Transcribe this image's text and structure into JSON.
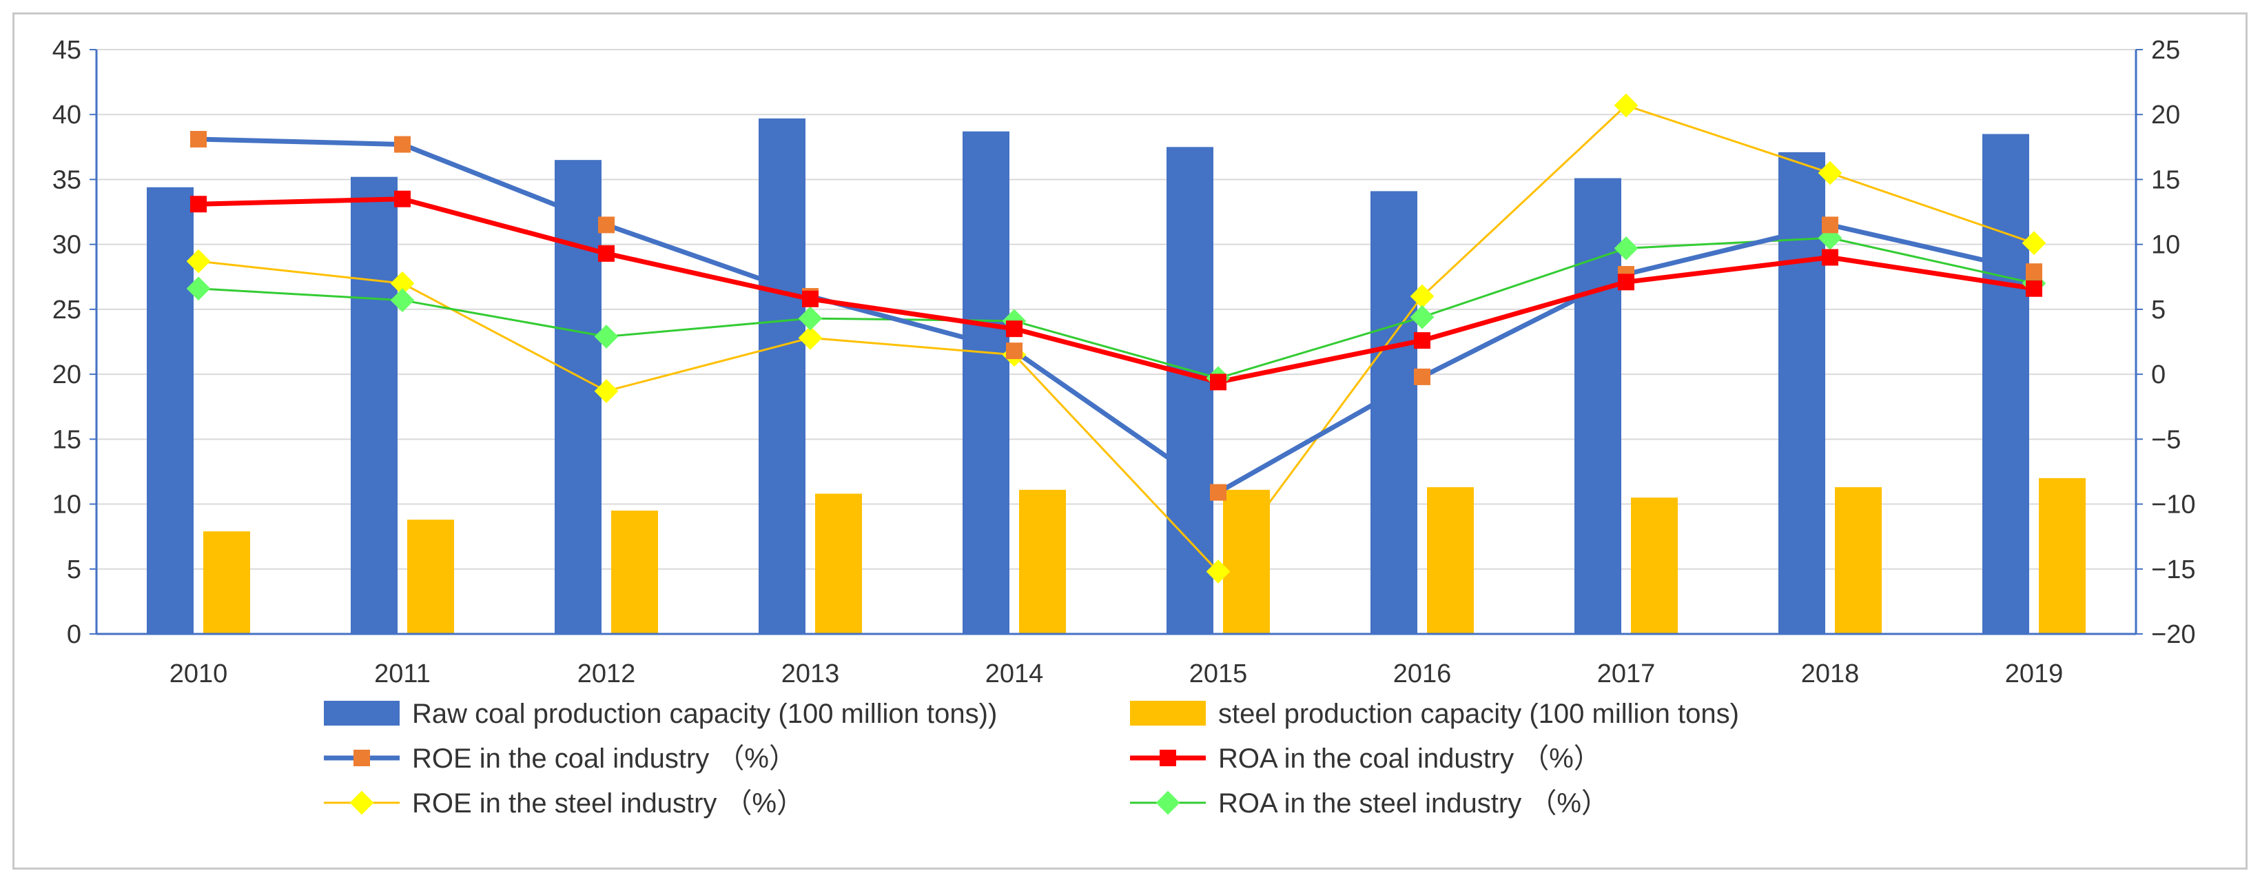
{
  "chart_data": {
    "type": "bar+line",
    "categories": [
      "2010",
      "2011",
      "2012",
      "2013",
      "2014",
      "2015",
      "2016",
      "2017",
      "2018",
      "2019"
    ],
    "y_left": {
      "min": 0,
      "max": 45,
      "step": 5
    },
    "y_right": {
      "min": -20,
      "max": 25,
      "step": 5
    },
    "bars": [
      {
        "name": "Raw coal production capacity (100 million tons))",
        "color": "#4472c4",
        "values": [
          34.4,
          35.2,
          36.5,
          39.7,
          38.7,
          37.5,
          34.1,
          35.1,
          37.1,
          38.5
        ]
      },
      {
        "name": "steel production capacity (100 million tons)",
        "color": "#ffc000",
        "values": [
          7.9,
          8.8,
          9.5,
          10.8,
          11.1,
          11.1,
          11.3,
          10.5,
          11.3,
          12.0
        ]
      }
    ],
    "lines": [
      {
        "name": "ROE in the coal industry （%）",
        "color": "#4472c4",
        "marker": "square",
        "marker_color": "#ed7d31",
        "values": [
          18.1,
          17.7,
          11.5,
          6.0,
          1.8,
          -9.1,
          -0.2,
          7.7,
          11.5,
          7.9
        ]
      },
      {
        "name": "ROA in the coal industry （%）",
        "color": "#ff0000",
        "marker": "square",
        "marker_color": "#ff0000",
        "values": [
          13.1,
          13.5,
          9.3,
          5.8,
          3.5,
          -0.6,
          2.6,
          7.1,
          9.0,
          6.6
        ]
      },
      {
        "name": "ROE in the steel industry （%）",
        "color": "#ffc000",
        "marker": "diamond",
        "marker_color": "#ffff00",
        "values": [
          8.7,
          7.0,
          -1.3,
          2.8,
          1.5,
          -15.2,
          6.0,
          20.7,
          15.5,
          10.1
        ]
      },
      {
        "name": "ROA in the steel industry （%）",
        "color": "#33cc33",
        "marker": "diamond",
        "marker_color": "#66ff66",
        "values": [
          6.6,
          5.7,
          2.9,
          4.3,
          4.1,
          -0.3,
          4.4,
          9.7,
          10.5,
          7.0
        ]
      }
    ]
  }
}
